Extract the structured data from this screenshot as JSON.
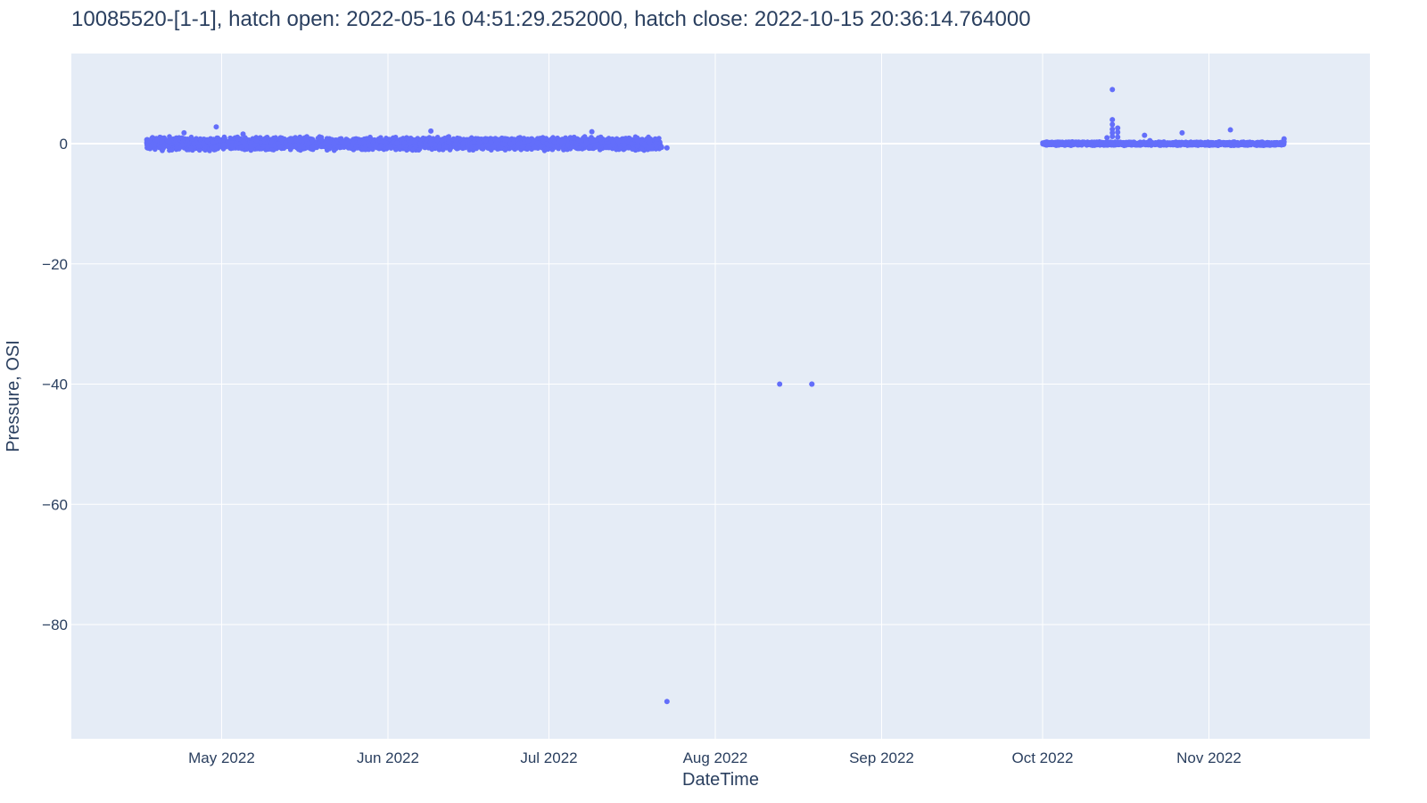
{
  "colors": {
    "plot_background": "#e5ecf6",
    "paper_background": "#ffffff",
    "marker": "#636efa",
    "grid": "#ffffff",
    "text": "#2a3f5f"
  },
  "chart_data": {
    "type": "scatter",
    "title": "10085520-[1-1], hatch open: 2022-05-16 04:51:29.252000, hatch close: 2022-10-15 20:36:14.764000",
    "xlabel": "DateTime",
    "ylabel": "Pressure, OSI",
    "xlim": [
      "2022-04-03",
      "2022-12-01"
    ],
    "ylim": [
      -99,
      15
    ],
    "grid": true,
    "x_ticks": [
      {
        "value": "2022-05-01",
        "label": "May 2022"
      },
      {
        "value": "2022-06-01",
        "label": "Jun 2022"
      },
      {
        "value": "2022-07-01",
        "label": "Jul 2022"
      },
      {
        "value": "2022-08-01",
        "label": "Aug 2022"
      },
      {
        "value": "2022-09-01",
        "label": "Sep 2022"
      },
      {
        "value": "2022-10-01",
        "label": "Oct 2022"
      },
      {
        "value": "2022-11-01",
        "label": "Nov 2022"
      }
    ],
    "y_ticks": [
      {
        "value": 0,
        "label": "0"
      },
      {
        "value": -20,
        "label": "−20"
      },
      {
        "value": -40,
        "label": "−40"
      },
      {
        "value": -60,
        "label": "−60"
      },
      {
        "value": -80,
        "label": "−80"
      }
    ],
    "dense_bands": [
      {
        "start": "2022-04-17",
        "end": "2022-07-22",
        "center": 0.0,
        "spread": 1.2
      },
      {
        "start": "2022-10-01",
        "end": "2022-11-15",
        "center": 0.0,
        "spread": 0.35
      }
    ],
    "series": [
      {
        "points": [
          {
            "x": "2022-04-30",
            "y": 2.8
          },
          {
            "x": "2022-04-24",
            "y": 1.8
          },
          {
            "x": "2022-05-05",
            "y": 1.6
          },
          {
            "x": "2022-06-09",
            "y": 2.1
          },
          {
            "x": "2022-07-09",
            "y": 2.0
          },
          {
            "x": "2022-07-22",
            "y": -0.6
          },
          {
            "x": "2022-07-23",
            "y": -0.7
          },
          {
            "x": "2022-07-23",
            "y": -92.8
          },
          {
            "x": "2022-08-13",
            "y": -40.0
          },
          {
            "x": "2022-08-19",
            "y": -40.0
          },
          {
            "x": "2022-08-19",
            "y": -40.0
          },
          {
            "x": "2022-10-14",
            "y": 9.0
          },
          {
            "x": "2022-10-14",
            "y": 4.0
          },
          {
            "x": "2022-10-14",
            "y": 3.2
          },
          {
            "x": "2022-10-14",
            "y": 2.4
          },
          {
            "x": "2022-10-14",
            "y": 1.8
          },
          {
            "x": "2022-10-14",
            "y": 1.2
          },
          {
            "x": "2022-10-15",
            "y": 2.6
          },
          {
            "x": "2022-10-15",
            "y": 1.9
          },
          {
            "x": "2022-10-15",
            "y": 1.1
          },
          {
            "x": "2022-10-13",
            "y": 1.0
          },
          {
            "x": "2022-10-20",
            "y": 1.4
          },
          {
            "x": "2022-10-21",
            "y": 0.5
          },
          {
            "x": "2022-10-27",
            "y": 1.8
          },
          {
            "x": "2022-11-05",
            "y": 2.3
          },
          {
            "x": "2022-11-15",
            "y": 0.8
          },
          {
            "x": "2022-11-15",
            "y": 0.3
          }
        ]
      }
    ]
  }
}
